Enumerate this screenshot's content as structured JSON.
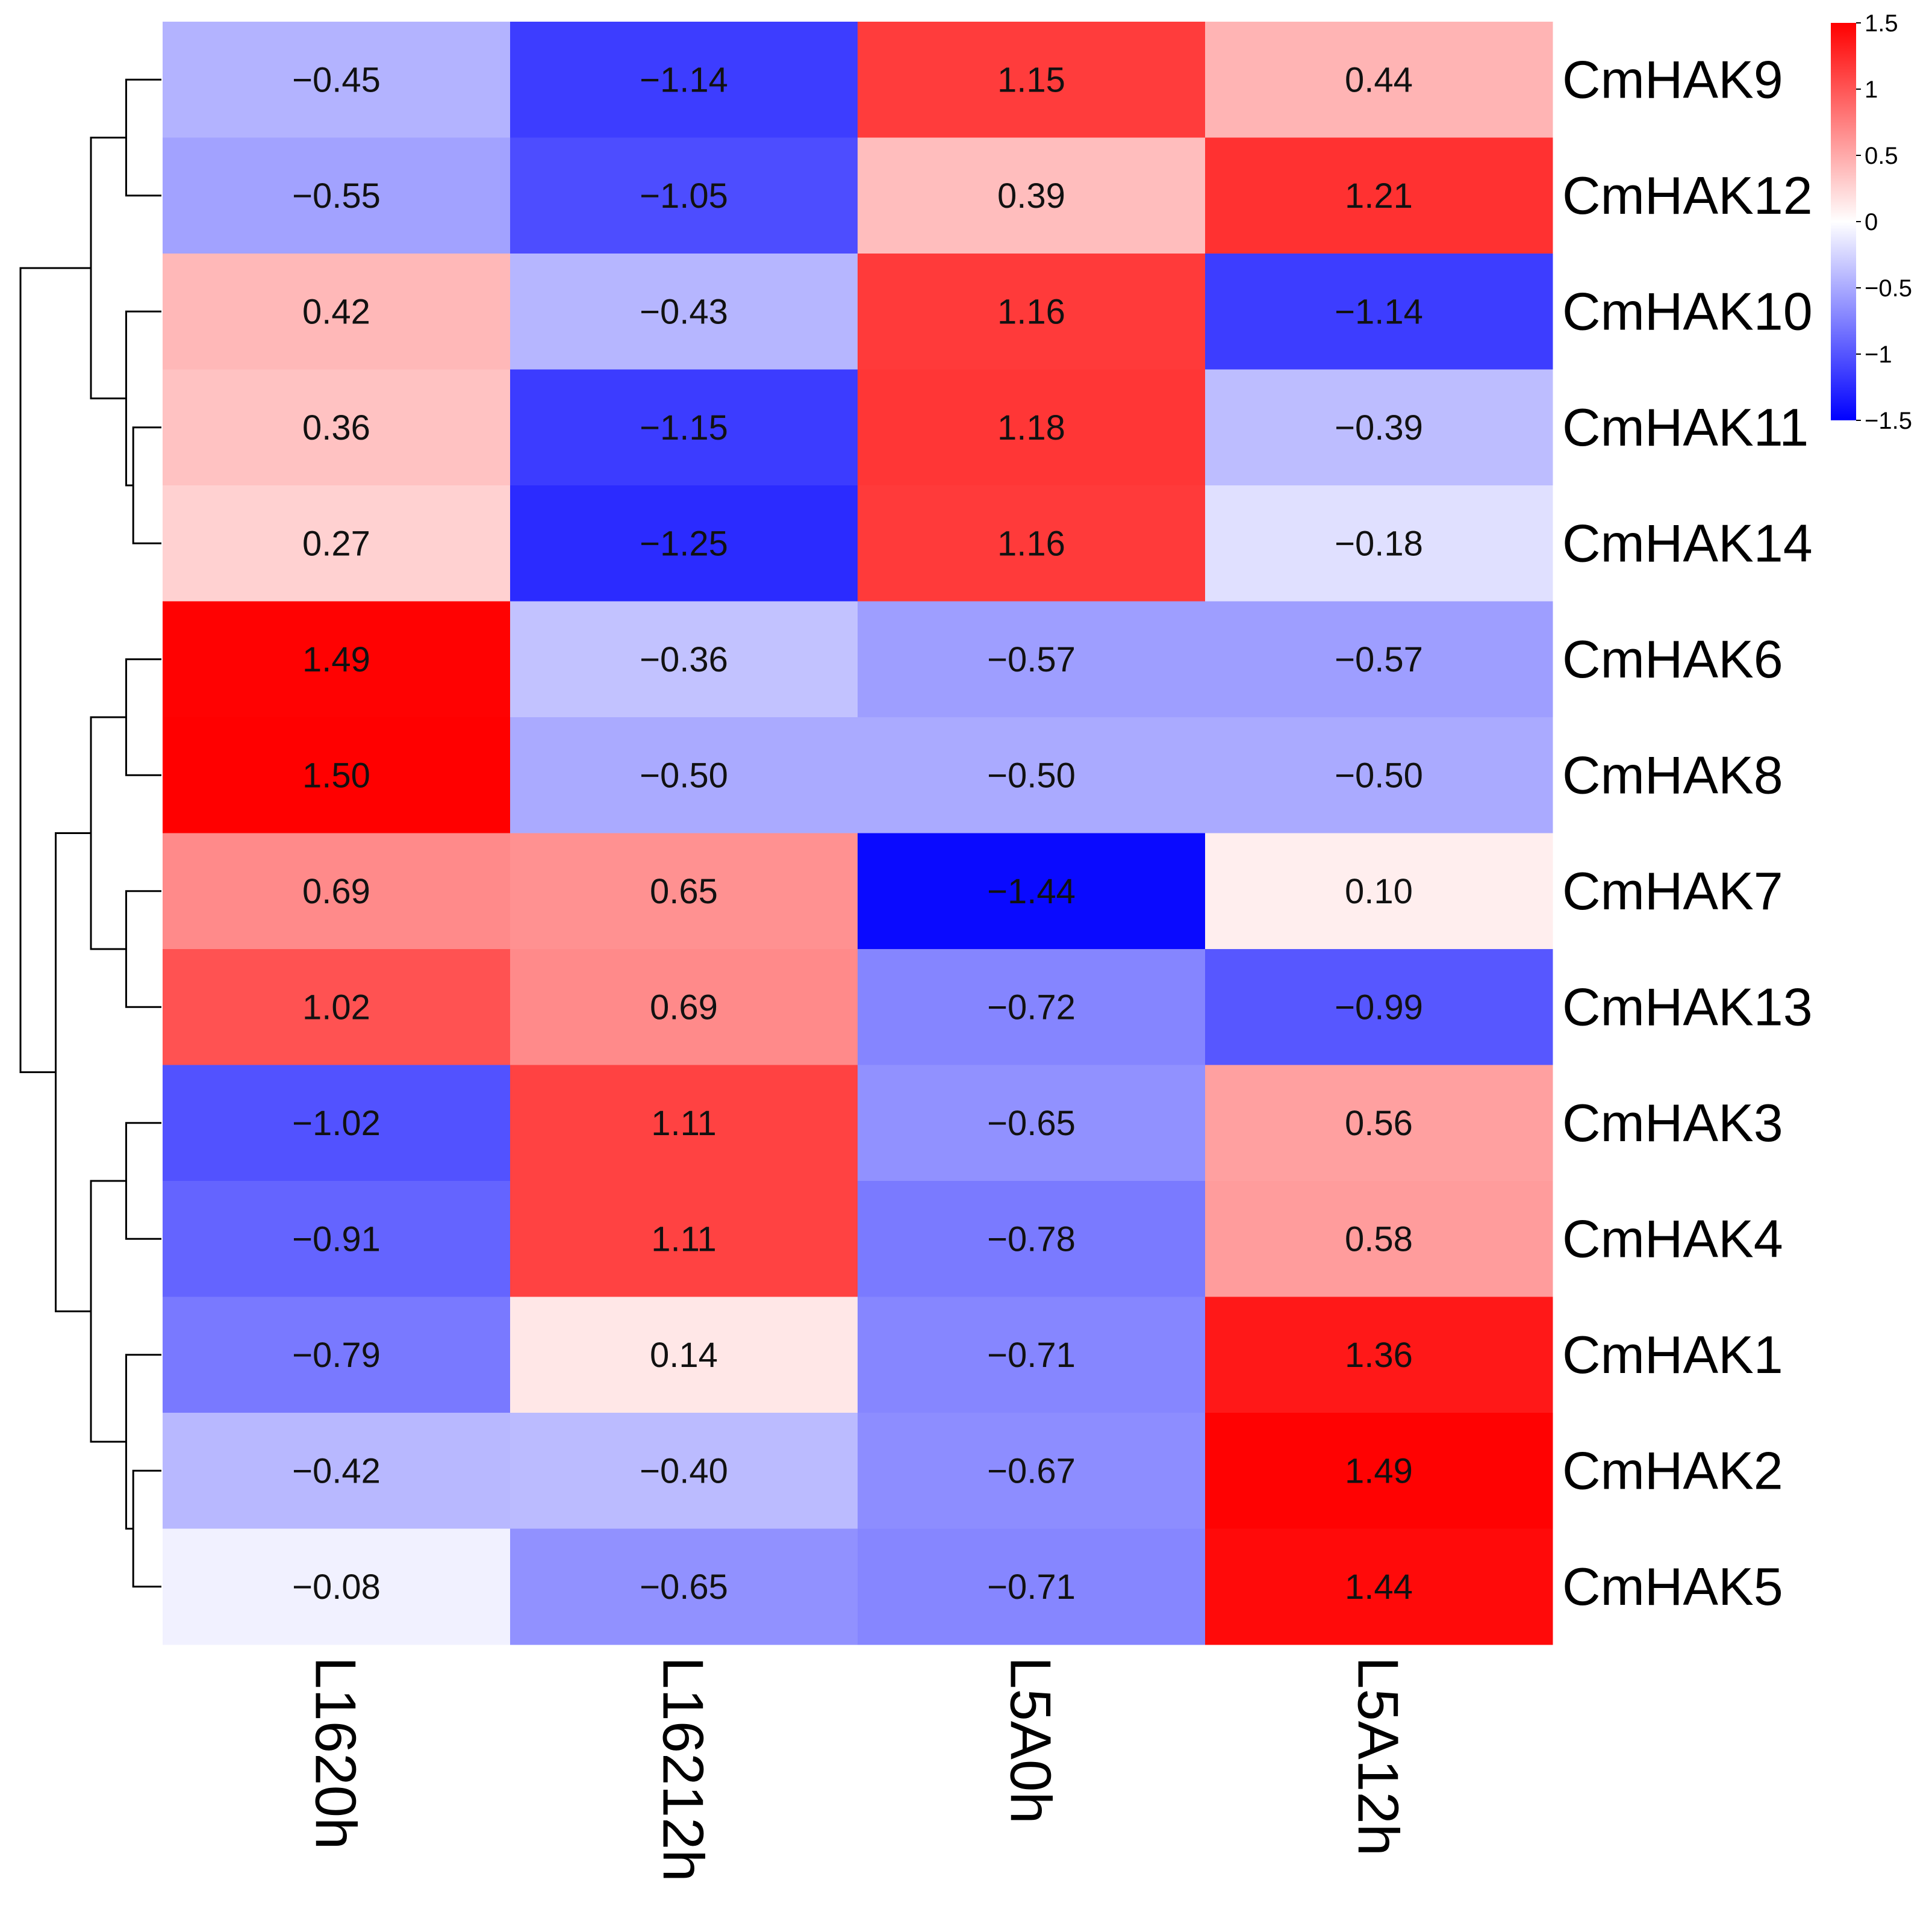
{
  "chart_data": {
    "type": "heatmap",
    "title": "",
    "rows": [
      "CmHAK9",
      "CmHAK12",
      "CmHAK10",
      "CmHAK11",
      "CmHAK14",
      "CmHAK6",
      "CmHAK8",
      "CmHAK7",
      "CmHAK13",
      "CmHAK3",
      "CmHAK4",
      "CmHAK1",
      "CmHAK2",
      "CmHAK5"
    ],
    "columns": [
      "L1620h",
      "L16212h",
      "L5A0h",
      "L5A12h"
    ],
    "values": [
      [
        -0.45,
        -1.14,
        1.15,
        0.44
      ],
      [
        -0.55,
        -1.05,
        0.39,
        1.21
      ],
      [
        0.42,
        -0.43,
        1.16,
        -1.14
      ],
      [
        0.36,
        -1.15,
        1.18,
        -0.39
      ],
      [
        0.27,
        -1.25,
        1.16,
        -0.18
      ],
      [
        1.49,
        -0.36,
        -0.57,
        -0.57
      ],
      [
        1.5,
        -0.5,
        -0.5,
        -0.5
      ],
      [
        0.69,
        0.65,
        -1.44,
        0.1
      ],
      [
        1.02,
        0.69,
        -0.72,
        -0.99
      ],
      [
        -1.02,
        1.11,
        -0.65,
        0.56
      ],
      [
        -0.91,
        1.11,
        -0.78,
        0.58
      ],
      [
        -0.79,
        0.14,
        -0.71,
        1.36
      ],
      [
        -0.42,
        -0.4,
        -0.67,
        1.49
      ],
      [
        -0.08,
        -0.65,
        -0.71,
        1.44
      ]
    ],
    "value_labels": [
      [
        "−0.45",
        "−1.14",
        "1.15",
        "0.44"
      ],
      [
        "−0.55",
        "−1.05",
        "0.39",
        "1.21"
      ],
      [
        "0.42",
        "−0.43",
        "1.16",
        "−1.14"
      ],
      [
        "0.36",
        "−1.15",
        "1.18",
        "−0.39"
      ],
      [
        "0.27",
        "−1.25",
        "1.16",
        "−0.18"
      ],
      [
        "1.49",
        "−0.36",
        "−0.57",
        "−0.57"
      ],
      [
        "1.50",
        "−0.50",
        "−0.50",
        "−0.50"
      ],
      [
        "0.69",
        "0.65",
        "−1.44",
        "0.10"
      ],
      [
        "1.02",
        "0.69",
        "−0.72",
        "−0.99"
      ],
      [
        "−1.02",
        "1.11",
        "−0.65",
        "0.56"
      ],
      [
        "−0.91",
        "1.11",
        "−0.78",
        "0.58"
      ],
      [
        "−0.79",
        "0.14",
        "−0.71",
        "1.36"
      ],
      [
        "−0.42",
        "−0.40",
        "−0.67",
        "1.49"
      ],
      [
        "−0.08",
        "−0.65",
        "−0.71",
        "1.44"
      ]
    ],
    "color_scale": {
      "min": -1.5,
      "max": 1.5,
      "low_color": "#0000ff",
      "mid_color": "#ffffff",
      "high_color": "#ff0000",
      "ticks": [
        1.5,
        1,
        0.5,
        0,
        -0.5,
        -1,
        -1.5
      ],
      "tick_labels": [
        "1.5",
        "1",
        "0.5",
        "0",
        "−0.5",
        "−1",
        "−1.5"
      ]
    },
    "legend_position": "top-right",
    "row_dendrogram": "left",
    "dendrogram_merges": [
      [
        0,
        1,
        1
      ],
      [
        3,
        4,
        0.8
      ],
      [
        2,
        [
          3,
          4
        ],
        1
      ],
      [
        [
          0,
          1
        ],
        [
          2,
          3,
          4
        ],
        2
      ],
      [
        5,
        6,
        1
      ],
      [
        7,
        8,
        1
      ],
      [
        [
          5,
          6
        ],
        [
          7,
          8
        ],
        2
      ],
      [
        9,
        10,
        1
      ],
      [
        12,
        13,
        0.8
      ],
      [
        11,
        [
          12,
          13
        ],
        1
      ],
      [
        [
          9,
          10
        ],
        [
          11,
          12,
          13
        ],
        2
      ],
      [
        [
          5,
          6,
          7,
          8
        ],
        [
          9,
          10,
          11,
          12,
          13
        ],
        3
      ],
      [
        [
          0,
          1,
          2,
          3,
          4
        ],
        [
          5,
          6,
          7,
          8,
          9,
          10,
          11,
          12,
          13
        ],
        4
      ]
    ]
  }
}
